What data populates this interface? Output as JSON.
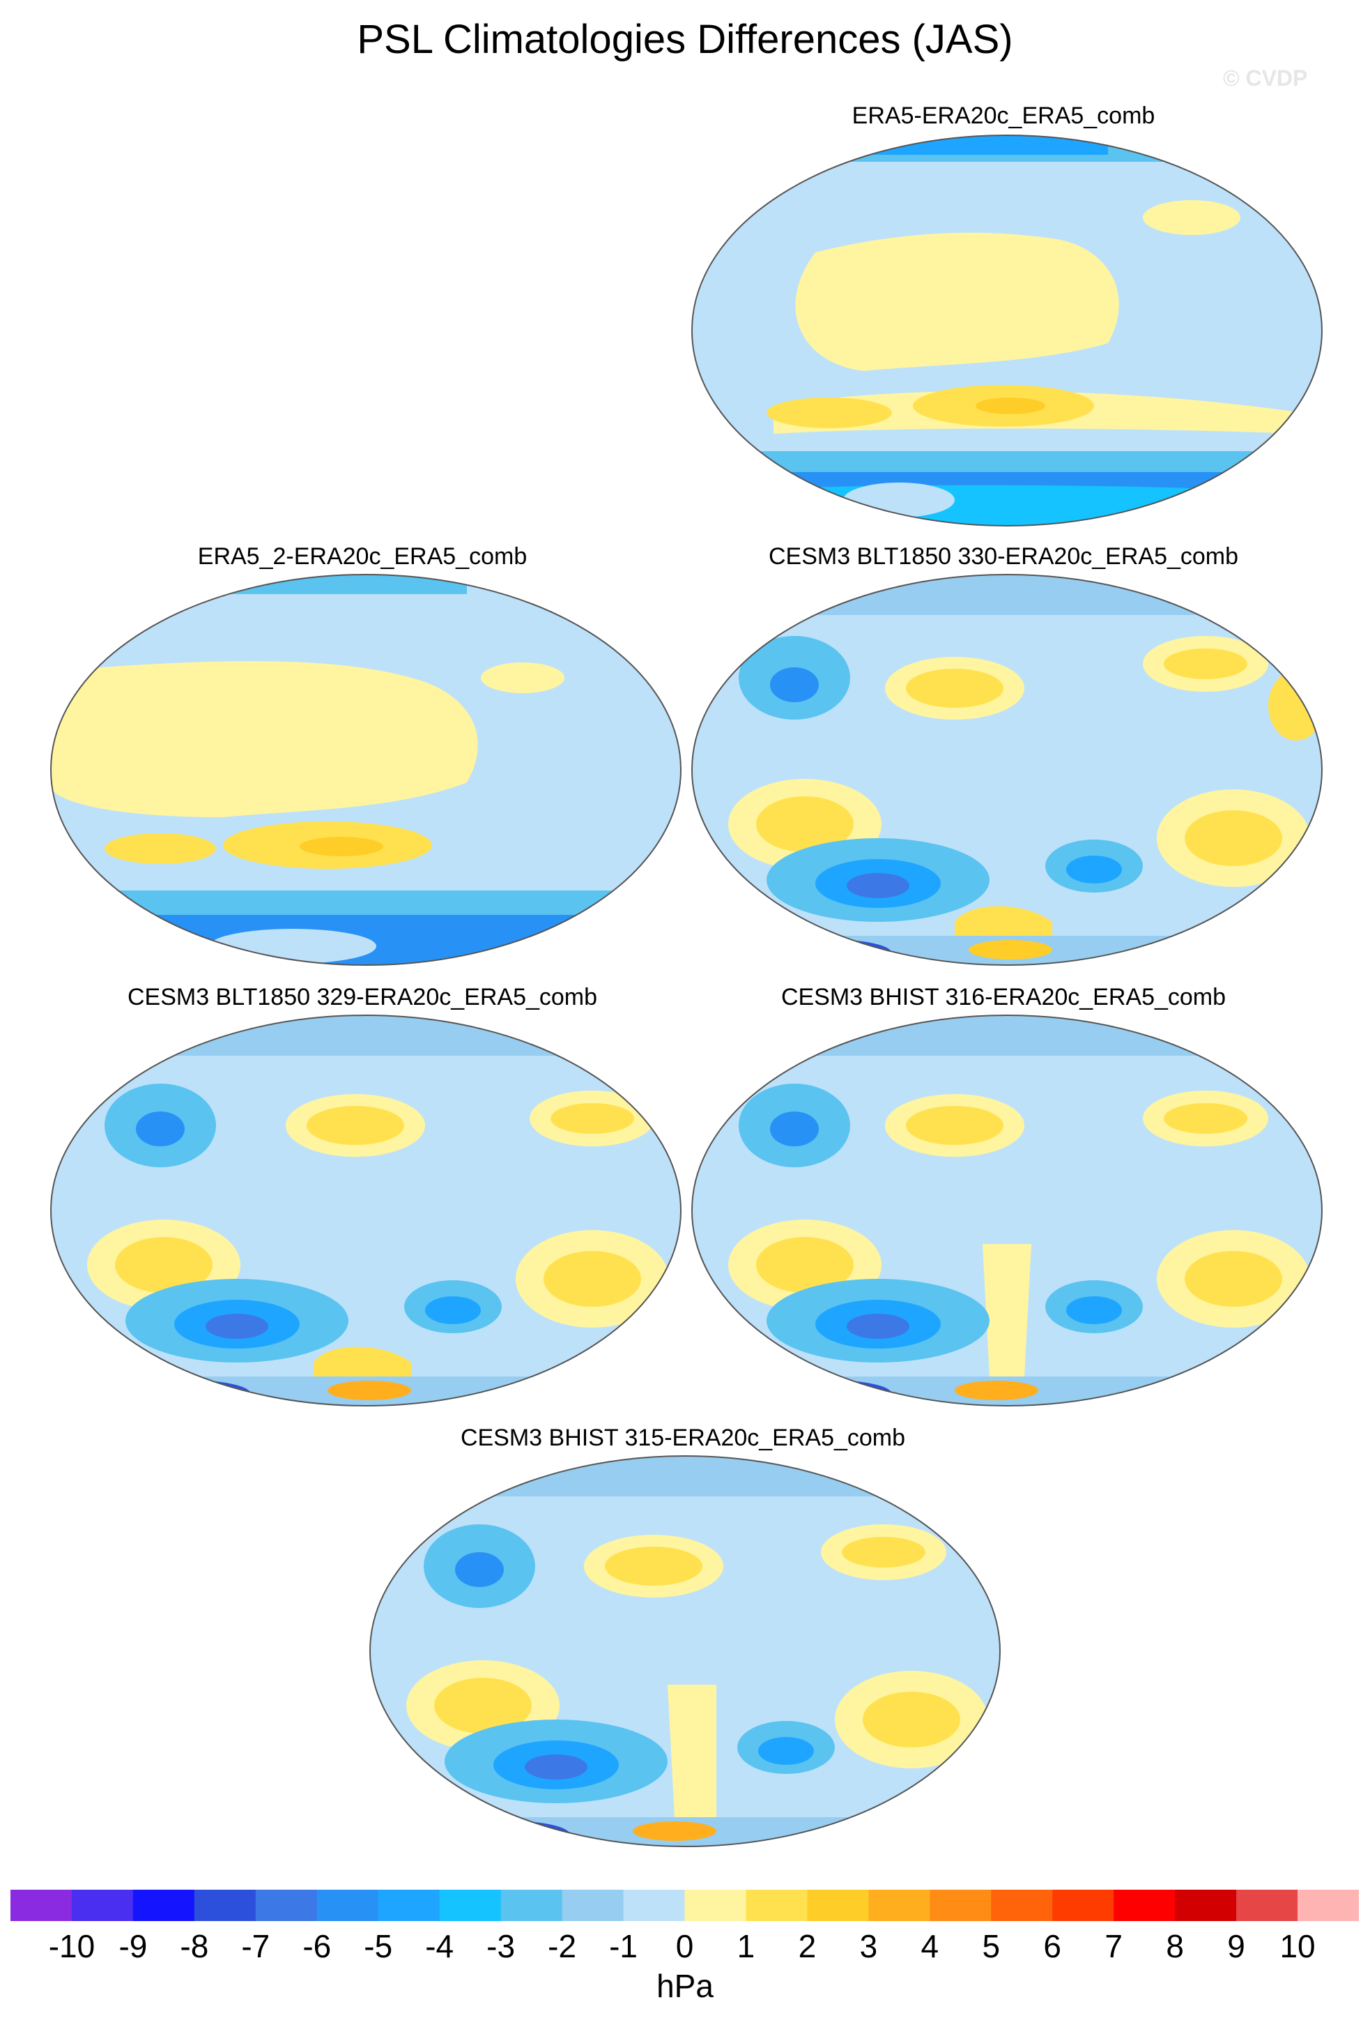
{
  "title": "PSL Climatologies Differences (JAS)",
  "watermark": "© CVDP",
  "panels": [
    {
      "id": "era5",
      "label": "ERA5-ERA20c_ERA5_comb"
    },
    {
      "id": "era5-2",
      "label": "ERA5_2-ERA20c_ERA5_comb"
    },
    {
      "id": "blt1850-330",
      "label": "CESM3 BLT1850 330-ERA20c_ERA5_comb"
    },
    {
      "id": "blt1850-329",
      "label": "CESM3 BLT1850 329-ERA20c_ERA5_comb"
    },
    {
      "id": "bhist-316",
      "label": "CESM3 BHIST 316-ERA20c_ERA5_comb"
    },
    {
      "id": "bhist-315",
      "label": "CESM3 BHIST 315-ERA20c_ERA5_comb"
    }
  ],
  "colorbar": {
    "colors": [
      "#8a2be2",
      "#4a2ff0",
      "#1414ff",
      "#2d50dc",
      "#3c78e6",
      "#2891f5",
      "#1ea5ff",
      "#14c3ff",
      "#5ac3f0",
      "#96cdf0",
      "#bee1fa",
      "#fff5a0",
      "#ffe150",
      "#ffcd28",
      "#ffaf1e",
      "#ff8c14",
      "#ff640a",
      "#ff3c00",
      "#ff0000",
      "#d20000",
      "#e64646",
      "#ffb4b4"
    ],
    "labels": [
      "-10",
      "-9",
      "-8",
      "-7",
      "-6",
      "-5",
      "-4",
      "-3",
      "-2",
      "-1",
      "0",
      "1",
      "2",
      "3",
      "4",
      "5",
      "6",
      "7",
      "8",
      "9",
      "10"
    ],
    "units": "hPa"
  }
}
